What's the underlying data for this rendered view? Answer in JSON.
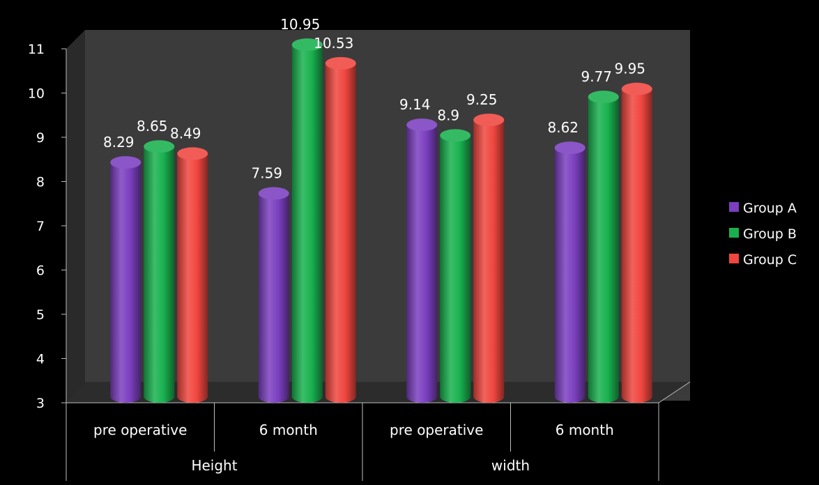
{
  "chart_data": {
    "type": "bar",
    "style": "3d-cylinder",
    "title": "",
    "xlabel": "",
    "ylabel": "",
    "ylim": [
      3,
      11
    ],
    "yticks": [
      3,
      4,
      5,
      6,
      7,
      8,
      9,
      10,
      11
    ],
    "groups": [
      {
        "label": "Height",
        "categories": [
          "pre operative",
          "6 month"
        ]
      },
      {
        "label": "width",
        "categories": [
          "pre operative",
          "6 month"
        ]
      }
    ],
    "categories": [
      "pre operative",
      "6 month",
      "pre operative",
      "6 month"
    ],
    "series": [
      {
        "name": "Group A",
        "color": "#7b3fbf",
        "values": [
          8.29,
          7.59,
          9.14,
          8.62
        ],
        "labels": [
          "8.29",
          "7.59",
          "9.14",
          "8.62"
        ]
      },
      {
        "name": "Group B",
        "color": "#19b14f",
        "values": [
          8.65,
          10.95,
          8.9,
          9.77
        ],
        "labels": [
          "8.65",
          "10.95",
          "8.9",
          "9.77"
        ]
      },
      {
        "name": "Group C",
        "color": "#f0463f",
        "values": [
          8.49,
          10.53,
          9.25,
          9.95
        ],
        "labels": [
          "8.49",
          "10.53",
          "9.25",
          "9.95"
        ]
      }
    ],
    "legend": "right",
    "grid": false,
    "background": "#000000",
    "plot_wall_color": "#3a3a3a"
  }
}
